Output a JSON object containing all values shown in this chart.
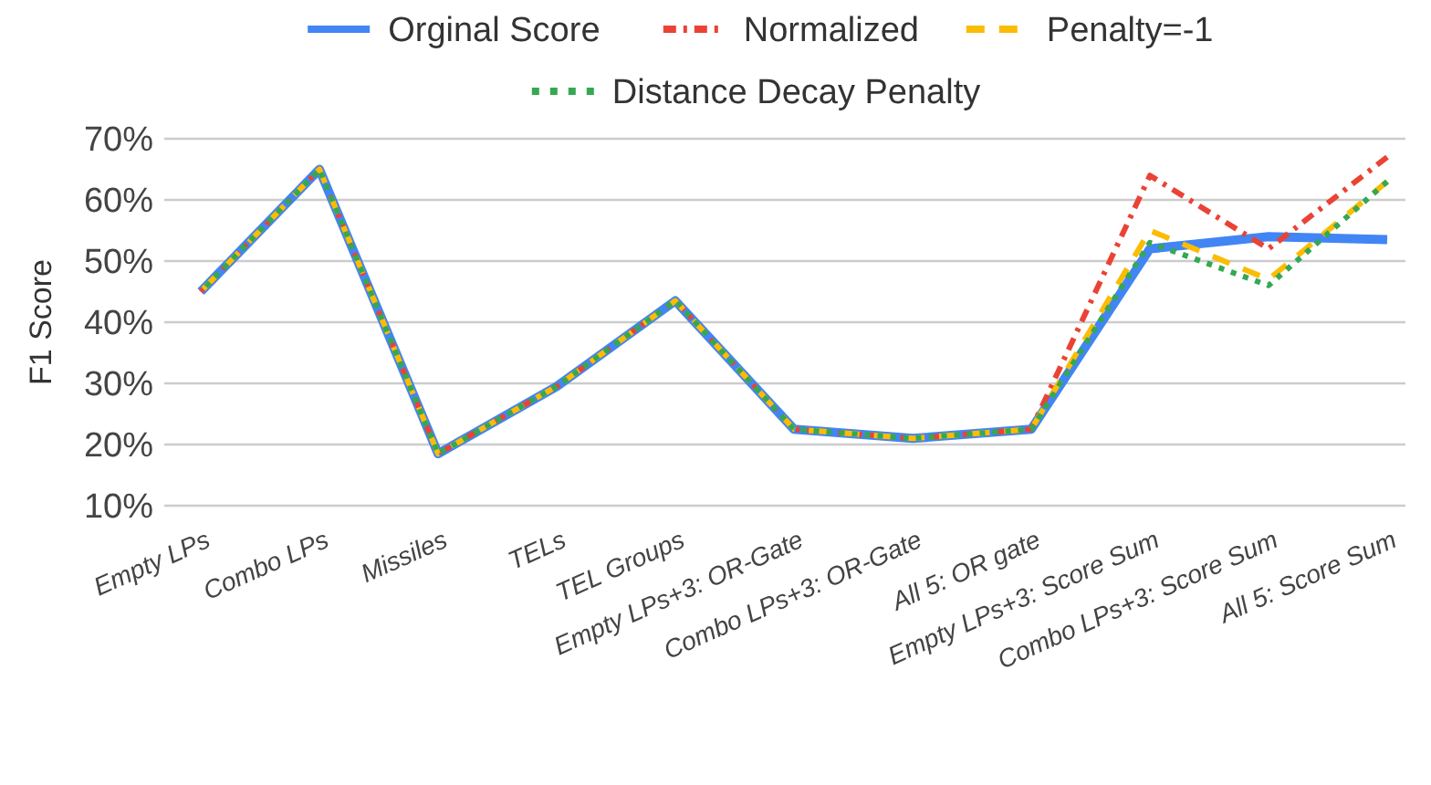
{
  "chart_data": {
    "type": "line",
    "ylabel": "F1 Score",
    "categories": [
      "Empty LPs",
      "Combo LPs",
      "Missiles",
      "TELs",
      "TEL Groups",
      "Empty LPs+3: OR-Gate",
      "Combo LPs+3: OR-Gate",
      "All 5: OR gate",
      "Empty LPs+3: Score Sum",
      "Combo LPs+3: Score Sum",
      "All 5: Score Sum"
    ],
    "series": [
      {
        "name": "Orginal Score",
        "color": "#4285f4",
        "line_style": "solid",
        "values": [
          45,
          65,
          18.5,
          29.5,
          43.5,
          22.5,
          21,
          22.5,
          52,
          54,
          53.5
        ]
      },
      {
        "name": "Normalized",
        "color": "#ea4335",
        "line_style": "dashdot",
        "values": [
          45,
          65,
          18.5,
          29.5,
          43.5,
          22.5,
          21,
          22.5,
          64,
          52,
          67
        ]
      },
      {
        "name": "Penalty=-1",
        "color": "#fbbc04",
        "line_style": "dashed",
        "values": [
          45,
          65,
          18.5,
          29.5,
          43.5,
          22.5,
          21,
          22.5,
          55,
          47,
          63
        ]
      },
      {
        "name": "Distance Decay Penalty",
        "color": "#34a853",
        "line_style": "dotted",
        "values": [
          45,
          65,
          18.5,
          29.5,
          43.5,
          22.5,
          21,
          22.5,
          53,
          46,
          63
        ]
      }
    ],
    "ylim": [
      10,
      70
    ],
    "yticks": [
      {
        "value": 10,
        "label": "10%"
      },
      {
        "value": 20,
        "label": "20%"
      },
      {
        "value": 30,
        "label": "30%"
      },
      {
        "value": 40,
        "label": "40%"
      },
      {
        "value": 50,
        "label": "50%"
      },
      {
        "value": 60,
        "label": "60%"
      },
      {
        "value": 70,
        "label": "70%"
      }
    ],
    "grid": "y",
    "legend": "top",
    "marker": "none"
  }
}
